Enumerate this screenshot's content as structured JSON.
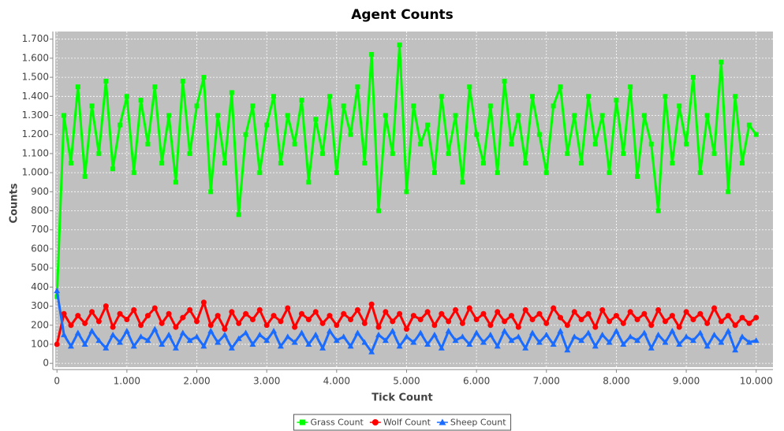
{
  "chart_data": {
    "type": "line",
    "title": "Agent Counts",
    "x_label": "Tick Count",
    "y_label": "Counts",
    "x": [
      0,
      100,
      200,
      300,
      400,
      500,
      600,
      700,
      800,
      900,
      1000,
      1100,
      1200,
      1300,
      1400,
      1500,
      1600,
      1700,
      1800,
      1900,
      2000,
      2100,
      2200,
      2300,
      2400,
      2500,
      2600,
      2700,
      2800,
      2900,
      3000,
      3100,
      3200,
      3300,
      3400,
      3500,
      3600,
      3700,
      3800,
      3900,
      4000,
      4100,
      4200,
      4300,
      4400,
      4500,
      4600,
      4700,
      4800,
      4900,
      5000,
      5100,
      5200,
      5300,
      5400,
      5500,
      5600,
      5700,
      5800,
      5900,
      6000,
      6100,
      6200,
      6300,
      6400,
      6500,
      6600,
      6700,
      6800,
      6900,
      7000,
      7100,
      7200,
      7300,
      7400,
      7500,
      7600,
      7700,
      7800,
      7900,
      8000,
      8100,
      8200,
      8300,
      8400,
      8500,
      8600,
      8700,
      8800,
      8900,
      9000,
      9100,
      9200,
      9300,
      9400,
      9500,
      9600,
      9700,
      9800,
      9900,
      10000
    ],
    "series": [
      {
        "name": "Grass Count",
        "color": "#00ff00",
        "marker": "square",
        "values": [
          350,
          1300,
          1050,
          1450,
          980,
          1350,
          1100,
          1480,
          1020,
          1250,
          1400,
          1000,
          1380,
          1150,
          1450,
          1050,
          1300,
          950,
          1480,
          1100,
          1350,
          1500,
          900,
          1300,
          1050,
          1420,
          780,
          1200,
          1350,
          1000,
          1250,
          1400,
          1050,
          1300,
          1150,
          1380,
          950,
          1280,
          1100,
          1400,
          1000,
          1350,
          1200,
          1450,
          1050,
          1620,
          800,
          1300,
          1100,
          1670,
          900,
          1350,
          1150,
          1250,
          1000,
          1400,
          1100,
          1300,
          950,
          1450,
          1200,
          1050,
          1350,
          1000,
          1480,
          1150,
          1300,
          1050,
          1400,
          1200,
          1000,
          1350,
          1450,
          1100,
          1300,
          1050,
          1400,
          1150,
          1300,
          1000,
          1380,
          1100,
          1450,
          980,
          1300,
          1150,
          800,
          1400,
          1050,
          1350,
          1150,
          1500,
          1000,
          1300,
          1100,
          1580,
          900,
          1400,
          1050,
          1250,
          1200
        ]
      },
      {
        "name": "Wolf Count",
        "color": "#ff0000",
        "marker": "circle",
        "values": [
          100,
          260,
          200,
          250,
          210,
          270,
          220,
          300,
          190,
          260,
          230,
          280,
          200,
          250,
          290,
          210,
          260,
          190,
          240,
          280,
          220,
          320,
          200,
          250,
          180,
          270,
          210,
          260,
          230,
          280,
          200,
          250,
          220,
          290,
          190,
          260,
          230,
          270,
          210,
          250,
          200,
          260,
          230,
          280,
          210,
          310,
          190,
          270,
          220,
          260,
          180,
          250,
          230,
          270,
          200,
          260,
          220,
          280,
          210,
          290,
          230,
          260,
          200,
          270,
          220,
          250,
          190,
          280,
          230,
          260,
          210,
          290,
          240,
          200,
          270,
          230,
          260,
          190,
          280,
          220,
          250,
          210,
          270,
          230,
          260,
          200,
          280,
          220,
          250,
          190,
          270,
          230,
          260,
          210,
          290,
          220,
          250,
          200,
          240,
          210,
          240
        ]
      },
      {
        "name": "Sheep Count",
        "color": "#1a6bff",
        "marker": "triangle",
        "values": [
          380,
          150,
          90,
          160,
          100,
          170,
          120,
          80,
          150,
          110,
          170,
          90,
          140,
          120,
          180,
          100,
          150,
          80,
          160,
          120,
          140,
          90,
          170,
          110,
          150,
          80,
          130,
          160,
          100,
          150,
          120,
          170,
          90,
          140,
          110,
          160,
          100,
          150,
          80,
          170,
          120,
          140,
          90,
          160,
          110,
          60,
          150,
          120,
          170,
          90,
          140,
          110,
          160,
          100,
          150,
          80,
          170,
          120,
          140,
          100,
          160,
          110,
          150,
          90,
          170,
          120,
          140,
          80,
          160,
          110,
          150,
          100,
          170,
          70,
          140,
          120,
          160,
          90,
          150,
          110,
          170,
          100,
          140,
          120,
          160,
          80,
          150,
          110,
          170,
          100,
          140,
          120,
          160,
          90,
          150,
          110,
          170,
          70,
          140,
          110,
          120
        ]
      }
    ],
    "xlim": [
      -25,
      10240
    ],
    "ylim": [
      -20,
      1740
    ],
    "xticks": [
      0,
      {
        "value": 1000,
        "label": "1.000"
      },
      {
        "value": 2000,
        "label": "2.000"
      },
      {
        "value": 3000,
        "label": "3.000"
      },
      {
        "value": 4000,
        "label": "4.000"
      },
      {
        "value": 5000,
        "label": "5.000"
      },
      {
        "value": 6000,
        "label": "6.000"
      },
      {
        "value": 7000,
        "label": "7.000"
      },
      {
        "value": 8000,
        "label": "8.000"
      },
      {
        "value": 9000,
        "label": "9.000"
      },
      {
        "value": 10000,
        "label": "10.000"
      }
    ],
    "yticks": [
      0,
      100,
      200,
      300,
      400,
      500,
      600,
      700,
      800,
      900,
      {
        "value": 1000,
        "label": "1.000"
      },
      {
        "value": 1100,
        "label": "1.100"
      },
      {
        "value": 1200,
        "label": "1.200"
      },
      {
        "value": 1300,
        "label": "1.300"
      },
      {
        "value": 1400,
        "label": "1.400"
      },
      {
        "value": 1500,
        "label": "1.500"
      },
      {
        "value": 1600,
        "label": "1.600"
      },
      {
        "value": 1700,
        "label": "1.700"
      }
    ],
    "grid": true,
    "legend": "bottom"
  }
}
